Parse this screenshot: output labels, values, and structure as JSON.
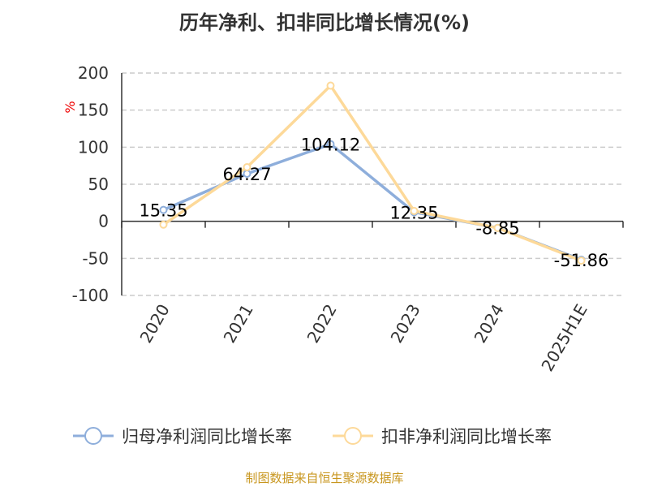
{
  "chart_data": {
    "type": "line",
    "title": "历年净利、扣非同比增长情况(%)",
    "ylabel": "%",
    "categories": [
      "2020",
      "2021",
      "2022",
      "2023",
      "2024",
      "2025H1E"
    ],
    "ylim": [
      -100,
      200
    ],
    "yticks": [
      200,
      150,
      100,
      50,
      0,
      -50,
      -100
    ],
    "grid": true,
    "legend_position": "bottom",
    "series": [
      {
        "name": "归母净利润同比增长率",
        "color": "#8eaedb",
        "values": [
          15.35,
          64.27,
          104.12,
          12.35,
          -8.85,
          -51.86
        ],
        "labels": [
          "15.35",
          "64.27",
          "104.12",
          "12.35",
          "-8.85",
          "-51.86"
        ]
      },
      {
        "name": "扣非净利润同比增长率",
        "color": "#fdd999",
        "values": [
          -4.5,
          73,
          183,
          14,
          -9,
          -53
        ]
      }
    ]
  },
  "source": "制图数据来自恒生聚源数据库"
}
